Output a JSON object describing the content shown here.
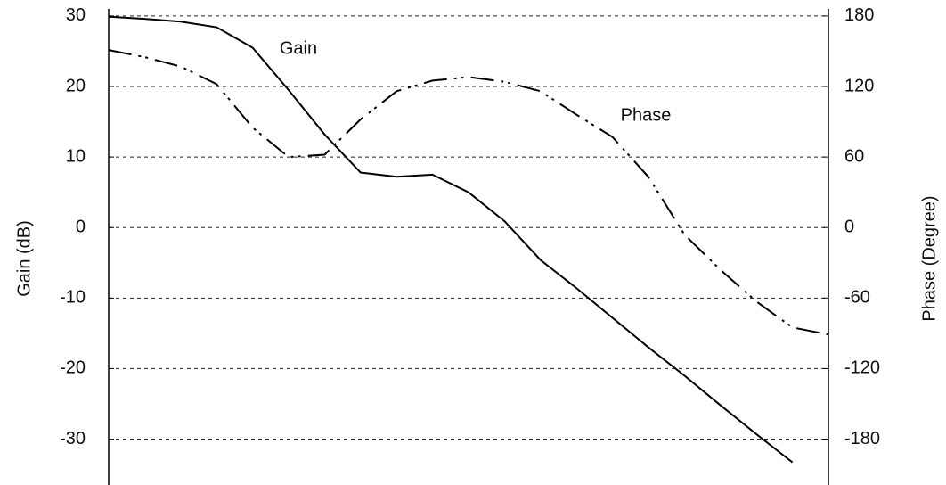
{
  "chart_data": {
    "type": "line",
    "y_label": "Gain (dB)",
    "y2_label": "Phase (Degree)",
    "categories": [
      null,
      null,
      null,
      null,
      null,
      null,
      null,
      null,
      null,
      null,
      null,
      null,
      null,
      null,
      null,
      null,
      null,
      null,
      null,
      null,
      null
    ],
    "series": [
      {
        "name": "Gain",
        "color": "#000000",
        "style": "solid",
        "values": [
          29.9,
          29.6,
          29.2,
          28.4,
          25.5,
          19.5,
          13.2,
          7.8,
          7.2,
          7.5,
          5.0,
          0.9,
          -4.6,
          -8.6,
          -12.8,
          -17,
          -21,
          -25.2,
          -29.3,
          -33.3,
          null
        ]
      },
      {
        "name": "Phase",
        "color": "#000000",
        "style": "dashdot",
        "axis": "y2",
        "values": [
          151,
          145,
          137,
          122,
          85,
          60,
          62,
          92,
          116,
          125,
          128,
          124,
          116,
          96,
          77,
          43,
          -6,
          -36,
          -63,
          -85,
          -91
        ]
      }
    ],
    "ylim": [
      -36,
      31
    ],
    "yticks": [
      -30,
      -20,
      -10,
      0,
      10,
      20,
      30
    ],
    "y2lim": [
      -216,
      186
    ],
    "y2ticks": [
      -180,
      -120,
      -60,
      0,
      60,
      120,
      180
    ],
    "grid": true
  }
}
